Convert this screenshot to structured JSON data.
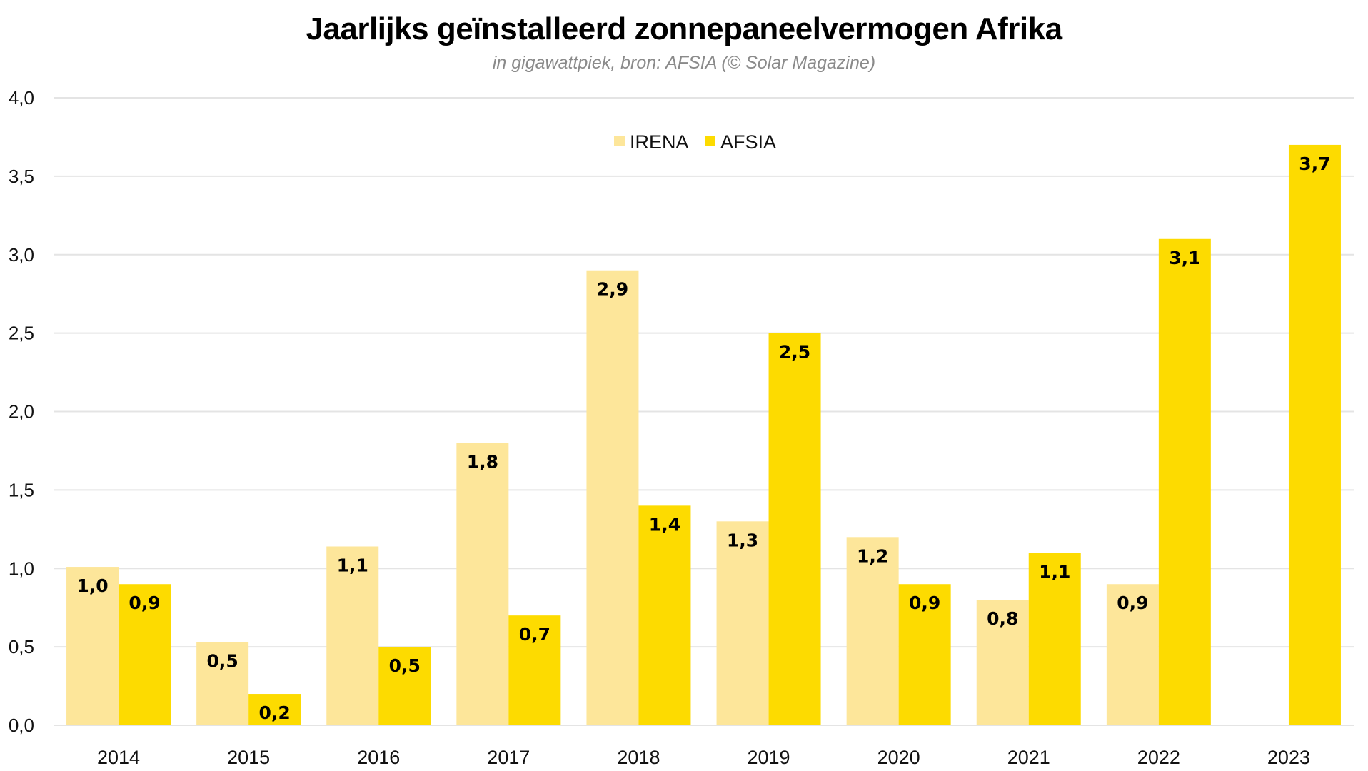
{
  "chart_data": {
    "type": "bar",
    "title": "Jaarlijks geïnstalleerd zonnepaneelvermogen Afrika",
    "subtitle": "in gigawattpiek, bron: AFSIA (© Solar Magazine)",
    "xlabel": "",
    "ylabel": "",
    "ylim": [
      0,
      4.0
    ],
    "yticks": [
      0.0,
      0.5,
      1.0,
      1.5,
      2.0,
      2.5,
      3.0,
      3.5,
      4.0
    ],
    "ytick_labels": [
      "0,0",
      "0,5",
      "1,0",
      "1,5",
      "2,0",
      "2,5",
      "3,0",
      "3,5",
      "4,0"
    ],
    "grid": "horizontal",
    "legend_position": "top-center",
    "categories": [
      "2014",
      "2015",
      "2016",
      "2017",
      "2018",
      "2019",
      "2020",
      "2021",
      "2022",
      "2023"
    ],
    "series": [
      {
        "name": "IRENA",
        "color": "#FDE69A",
        "values": [
          1.01,
          0.53,
          1.14,
          1.8,
          2.9,
          1.3,
          1.2,
          0.8,
          0.9,
          null
        ],
        "labels": [
          "1,0",
          "0,5",
          "1,1",
          "1,8",
          "2,9",
          "1,3",
          "1,2",
          "0,8",
          "0,9",
          ""
        ]
      },
      {
        "name": "AFSIA",
        "color": "#FDDB00",
        "values": [
          0.9,
          0.2,
          0.5,
          0.7,
          1.4,
          2.5,
          0.9,
          1.1,
          3.1,
          3.7
        ],
        "labels": [
          "0,9",
          "0,2",
          "0,5",
          "0,7",
          "1,4",
          "2,5",
          "0,9",
          "1,1",
          "3,1",
          "3,7"
        ]
      }
    ]
  },
  "colors": {
    "grid": "#e4e4e4",
    "text": "#111111",
    "subtitle": "#8a8a8a"
  }
}
